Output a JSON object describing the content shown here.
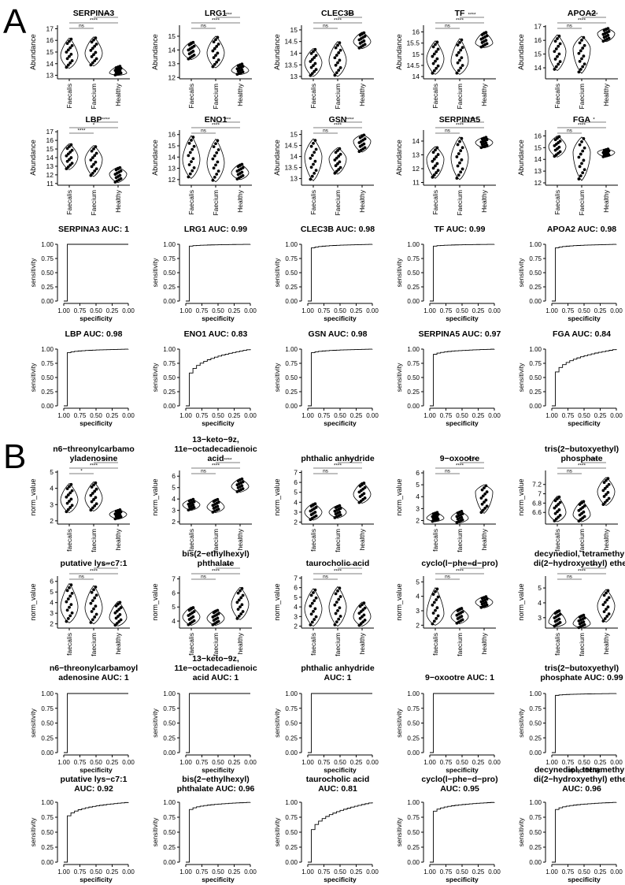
{
  "panels": {
    "A": {
      "label": "A",
      "violin_ylabel": "Abundance",
      "groups": [
        "Faecalis",
        "Faecium",
        "Healthy"
      ],
      "violins": [
        {
          "title": "SERPINA3",
          "ticks": [
            13,
            14,
            15,
            16,
            17
          ],
          "ylim": [
            12.7,
            17.3
          ],
          "dist": [
            [
              13.6,
              16.2,
              14.7
            ],
            [
              13.8,
              16.3,
              14.9
            ],
            [
              13.0,
              13.8,
              13.2
            ]
          ],
          "sig": [
            "ns",
            "****",
            "****"
          ]
        },
        {
          "title": "LRG1",
          "ticks": [
            12,
            13,
            14,
            15
          ],
          "ylim": [
            11.9,
            15.8
          ],
          "dist": [
            [
              13.3,
              14.6,
              13.9
            ],
            [
              12.7,
              15.0,
              13.8
            ],
            [
              12.2,
              13.0,
              12.5
            ]
          ],
          "sig": [
            "ns",
            "****",
            "****"
          ]
        },
        {
          "title": "CLEC3B",
          "ticks": [
            13.0,
            13.5,
            14.0,
            14.5,
            15.0
          ],
          "ylim": [
            12.9,
            15.2
          ],
          "dist": [
            [
              13.0,
              14.2,
              13.6
            ],
            [
              13.0,
              14.5,
              13.7
            ],
            [
              14.2,
              14.9,
              14.5
            ]
          ],
          "sig": [
            "ns",
            "****",
            "****"
          ]
        },
        {
          "title": "TF",
          "ticks": [
            14.0,
            14.5,
            15.0,
            15.5,
            16.0
          ],
          "ylim": [
            13.9,
            16.3
          ],
          "dist": [
            [
              14.1,
              15.6,
              14.8
            ],
            [
              14.1,
              15.7,
              14.7
            ],
            [
              15.3,
              16.0,
              15.5
            ]
          ],
          "sig": [
            "ns",
            "****",
            "****"
          ]
        },
        {
          "title": "APOA2",
          "ticks": [
            14,
            15,
            16,
            17
          ],
          "ylim": [
            13.2,
            17.1
          ],
          "dist": [
            [
              13.8,
              16.4,
              15.2
            ],
            [
              13.6,
              16.3,
              15.4
            ],
            [
              15.9,
              16.9,
              16.5
            ]
          ],
          "sig": [
            "ns",
            "****",
            "****"
          ]
        }
      ],
      "violins2": [
        {
          "title": "LBP",
          "ticks": [
            11,
            12,
            13,
            14,
            15,
            16,
            17
          ],
          "ylim": [
            10.8,
            17.2
          ],
          "dist": [
            [
              12.6,
              15.6,
              14.1
            ],
            [
              11.8,
              15.4,
              13.8
            ],
            [
              11.1,
              12.9,
              12.1
            ]
          ],
          "sig": [
            "****",
            "*",
            "****"
          ]
        },
        {
          "title": "ENO1",
          "ticks": [
            12,
            13,
            14,
            15,
            16
          ],
          "ylim": [
            11.5,
            16.4
          ],
          "dist": [
            [
              12.1,
              15.9,
              13.8
            ],
            [
              11.8,
              15.6,
              13.5
            ],
            [
              12.0,
              13.4,
              12.6
            ]
          ],
          "sig": [
            "ns",
            "****",
            "***"
          ]
        },
        {
          "title": "GSN",
          "ticks": [
            13.0,
            13.5,
            14.0,
            14.5,
            15.0
          ],
          "ylim": [
            12.7,
            15.2
          ],
          "dist": [
            [
              12.9,
              14.8,
              14.0
            ],
            [
              13.2,
              14.4,
              13.9
            ],
            [
              14.2,
              15.0,
              14.7
            ]
          ],
          "sig": [
            "ns",
            "****",
            "****"
          ]
        },
        {
          "title": "SERPINA5",
          "ticks": [
            11,
            12,
            13,
            14
          ],
          "ylim": [
            10.8,
            14.8
          ],
          "dist": [
            [
              11.3,
              13.6,
              12.7
            ],
            [
              11.2,
              14.3,
              12.8
            ],
            [
              13.5,
              14.3,
              13.9
            ]
          ],
          "sig": [
            "ns",
            "****",
            "****"
          ]
        },
        {
          "title": "FGA",
          "ticks": [
            12,
            13,
            14,
            15,
            16
          ],
          "ylim": [
            11.8,
            16.5
          ],
          "dist": [
            [
              14.2,
              16.0,
              15.1
            ],
            [
              12.2,
              15.9,
              14.6
            ],
            [
              14.2,
              14.9,
              14.6
            ]
          ],
          "sig": [
            "ns",
            "****",
            "*"
          ]
        }
      ],
      "roc": [
        {
          "title": "SERPINA3 AUC: 1",
          "auc": 1
        },
        {
          "title": "LRG1 AUC: 0.99",
          "auc": 0.99
        },
        {
          "title": "CLEC3B AUC: 0.98",
          "auc": 0.98
        },
        {
          "title": "TF AUC: 0.99",
          "auc": 0.99
        },
        {
          "title": "APOA2 AUC: 0.98",
          "auc": 0.98
        }
      ],
      "roc2": [
        {
          "title": "LBP AUC: 0.98",
          "auc": 0.98
        },
        {
          "title": "ENO1 AUC: 0.83",
          "auc": 0.83
        },
        {
          "title": "GSN AUC: 0.98",
          "auc": 0.98
        },
        {
          "title": "SERPINA5 AUC: 0.97",
          "auc": 0.97
        },
        {
          "title": "FGA AUC: 0.84",
          "auc": 0.84
        }
      ]
    },
    "B": {
      "label": "B",
      "violin_ylabel": "norm_value",
      "groups": [
        "faecalis",
        "faecium",
        "healthy"
      ],
      "violins": [
        {
          "title": [
            "n6−threonylcarbamo",
            "yladenosine"
          ],
          "ticks": [
            2,
            3,
            4,
            5
          ],
          "ylim": [
            1.8,
            5.1
          ],
          "dist": [
            [
              2.5,
              4.3,
              3.3
            ],
            [
              2.6,
              4.4,
              3.4
            ],
            [
              2.1,
              2.7,
              2.4
            ]
          ],
          "sig": [
            "*",
            "****",
            "****"
          ]
        },
        {
          "title": [
            "13−keto−9z,",
            "11e−octadecadienoic",
            "acid"
          ],
          "ticks": [
            2,
            3,
            4,
            5,
            6
          ],
          "ylim": [
            1.8,
            6.5
          ],
          "dist": [
            [
              3.0,
              4.0,
              3.5
            ],
            [
              2.8,
              4.0,
              3.3
            ],
            [
              4.6,
              5.8,
              5.1
            ]
          ],
          "sig": [
            "ns",
            "****",
            "****"
          ]
        },
        {
          "title": [
            "phthalic anhydride"
          ],
          "ticks": [
            2,
            3,
            4,
            5,
            6,
            7
          ],
          "ylim": [
            1.8,
            7.2
          ],
          "dist": [
            [
              2.2,
              3.9,
              3.0
            ],
            [
              2.4,
              3.7,
              3.0
            ],
            [
              3.9,
              6.0,
              4.8
            ]
          ],
          "sig": [
            "ns",
            "****",
            "****"
          ]
        },
        {
          "title": [
            "9−oxootre"
          ],
          "ticks": [
            2,
            3,
            4,
            5,
            6
          ],
          "ylim": [
            1.7,
            6.2
          ],
          "dist": [
            [
              1.9,
              2.7,
              2.2
            ],
            [
              1.8,
              2.8,
              2.2
            ],
            [
              2.6,
              5.0,
              4.4
            ]
          ],
          "sig": [
            "ns",
            "****",
            "****"
          ]
        },
        {
          "title": [
            "tris(2−butoxyethyl)",
            "phosphate"
          ],
          "ticks": [
            6.6,
            6.8,
            7.0,
            7.2
          ],
          "ylim": [
            6.35,
            7.5
          ],
          "dist": [
            [
              6.4,
              6.95,
              6.6
            ],
            [
              6.4,
              6.85,
              6.55
            ],
            [
              6.75,
              7.35,
              7.05
            ]
          ],
          "sig": [
            "ns",
            "****",
            "****"
          ]
        }
      ],
      "violins2": [
        {
          "title": [
            "putative lys−c7:1"
          ],
          "ticks": [
            2,
            3,
            4,
            5,
            6
          ],
          "ylim": [
            1.6,
            6.5
          ],
          "dist": [
            [
              2.1,
              5.8,
              3.6
            ],
            [
              2.0,
              5.6,
              3.5
            ],
            [
              1.8,
              4.1,
              2.6
            ]
          ],
          "sig": [
            "ns",
            "****",
            "****"
          ]
        },
        {
          "title": [
            "bis(2−ethylhexyl)",
            "phthalate"
          ],
          "ticks": [
            4,
            5,
            6,
            7
          ],
          "ylim": [
            3.5,
            7.2
          ],
          "dist": [
            [
              3.7,
              5.0,
              4.3
            ],
            [
              3.7,
              4.8,
              4.2
            ],
            [
              4.1,
              6.4,
              5.2
            ]
          ],
          "sig": [
            "ns",
            "****",
            "****"
          ]
        },
        {
          "title": [
            "taurocholic acid"
          ],
          "ticks": [
            2,
            3,
            4,
            5,
            6,
            7
          ],
          "ylim": [
            1.8,
            7.2
          ],
          "dist": [
            [
              2.0,
              5.9,
              3.8
            ],
            [
              2.0,
              6.1,
              4.0
            ],
            [
              2.0,
              4.5,
              3.0
            ]
          ],
          "sig": [
            "ns",
            "****",
            "****"
          ]
        },
        {
          "title": [
            "cyclo(l−phe−d−pro)"
          ],
          "ticks": [
            2,
            3,
            4,
            5
          ],
          "ylim": [
            1.8,
            5.4
          ],
          "dist": [
            [
              2.0,
              4.6,
              2.8
            ],
            [
              2.1,
              3.2,
              2.6
            ],
            [
              3.2,
              4.0,
              3.6
            ]
          ],
          "sig": [
            "ns",
            "****",
            "****"
          ]
        },
        {
          "title": [
            "decynediol, tetramethyl,",
            "di(2−hydroxyethyl) ether"
          ],
          "ticks": [
            3,
            4,
            5
          ],
          "ylim": [
            2.3,
            5.8
          ],
          "dist": [
            [
              2.4,
              3.5,
              2.7
            ],
            [
              2.3,
              3.2,
              2.6
            ],
            [
              2.7,
              4.9,
              3.8
            ]
          ],
          "sig": [
            "ns",
            "****",
            "****"
          ]
        }
      ],
      "roc": [
        {
          "title": [
            "n6−threonylcarbamoyl",
            "adenosine AUC: 1"
          ],
          "auc": 1
        },
        {
          "title": [
            "13−keto−9z,",
            "11e−octadecadienoic",
            "acid AUC: 1"
          ],
          "auc": 1
        },
        {
          "title": [
            "phthalic anhydride",
            "AUC: 1"
          ],
          "auc": 1
        },
        {
          "title": [
            "9−oxootre AUC: 1"
          ],
          "auc": 1
        },
        {
          "title": [
            "tris(2−butoxyethyl)",
            "phosphate AUC: 0.99"
          ],
          "auc": 0.99
        }
      ],
      "roc2": [
        {
          "title": [
            "putative lys−c7:1",
            "AUC: 0.92"
          ],
          "auc": 0.92
        },
        {
          "title": [
            "bis(2−ethylhexyl)",
            "phthalate AUC: 0.96"
          ],
          "auc": 0.96
        },
        {
          "title": [
            "taurocholic acid",
            "AUC: 0.81"
          ],
          "auc": 0.81
        },
        {
          "title": [
            "cyclo(l−phe−d−pro)",
            "AUC: 0.95"
          ],
          "auc": 0.95
        },
        {
          "title": [
            "decynediol, tetramethyl,",
            "di(2−hydroxyethyl) ether",
            "AUC: 0.96"
          ],
          "auc": 0.96
        }
      ]
    },
    "roc_axes": {
      "xlabel": "specificity",
      "ylabel": "sensitivity",
      "xticks": [
        "1.00",
        "0.75",
        "0.50",
        "0.25",
        "0.00"
      ],
      "yticks": [
        "0.00",
        "0.25",
        "0.50",
        "0.75",
        "1.00"
      ]
    }
  },
  "chart_data": [
    {
      "type": "violin",
      "panel": "A",
      "ylabel": "Abundance",
      "categories": [
        "Faecalis",
        "Faecium",
        "Healthy"
      ],
      "series": [
        {
          "name": "SERPINA3",
          "medians": [
            14.7,
            14.9,
            13.2
          ]
        },
        {
          "name": "LRG1",
          "medians": [
            13.9,
            13.8,
            12.5
          ]
        },
        {
          "name": "CLEC3B",
          "medians": [
            13.6,
            13.7,
            14.5
          ]
        },
        {
          "name": "TF",
          "medians": [
            14.8,
            14.7,
            15.5
          ]
        },
        {
          "name": "APOA2",
          "medians": [
            15.2,
            15.4,
            16.5
          ]
        },
        {
          "name": "LBP",
          "medians": [
            14.1,
            13.8,
            12.1
          ]
        },
        {
          "name": "ENO1",
          "medians": [
            13.8,
            13.5,
            12.6
          ]
        },
        {
          "name": "GSN",
          "medians": [
            14.0,
            13.9,
            14.7
          ]
        },
        {
          "name": "SERPINA5",
          "medians": [
            12.7,
            12.8,
            13.9
          ]
        },
        {
          "name": "FGA",
          "medians": [
            15.1,
            14.6,
            14.6
          ]
        }
      ]
    },
    {
      "type": "line",
      "panel": "A",
      "xlabel": "specificity",
      "ylabel": "sensitivity",
      "series": [
        {
          "name": "SERPINA3 AUC: 1"
        },
        {
          "name": "LRG1 AUC: 0.99"
        },
        {
          "name": "CLEC3B AUC: 0.98"
        },
        {
          "name": "TF AUC: 0.99"
        },
        {
          "name": "APOA2 AUC: 0.98"
        },
        {
          "name": "LBP AUC: 0.98"
        },
        {
          "name": "ENO1 AUC: 0.83"
        },
        {
          "name": "GSN AUC: 0.98"
        },
        {
          "name": "SERPINA5 AUC: 0.97"
        },
        {
          "name": "FGA AUC: 0.84"
        }
      ]
    },
    {
      "type": "violin",
      "panel": "B",
      "ylabel": "norm_value",
      "categories": [
        "faecalis",
        "faecium",
        "healthy"
      ]
    },
    {
      "type": "line",
      "panel": "B",
      "xlabel": "specificity",
      "ylabel": "sensitivity"
    }
  ]
}
